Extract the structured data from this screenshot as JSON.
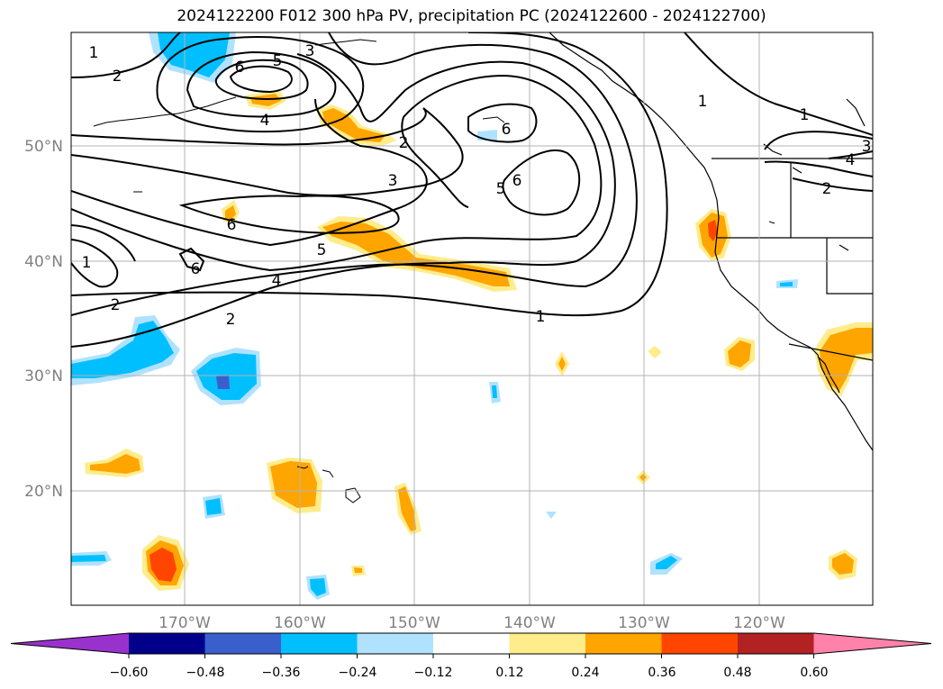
{
  "title": "2024122200 F012 300 hPa PV, precipitation PC (2024122600 - 2024122700)",
  "lat_ticks": [
    "50°N",
    "40°N",
    "30°N",
    "20°N"
  ],
  "lon_ticks": [
    "170°W",
    "160°W",
    "150°W",
    "140°W",
    "130°W",
    "120°W"
  ],
  "contour_labels": [
    "1",
    "2",
    "3",
    "4",
    "5",
    "6"
  ],
  "colorbar": {
    "ticks": [
      "−0.60",
      "−0.48",
      "−0.36",
      "−0.24",
      "−0.12",
      "0.12",
      "0.24",
      "0.36",
      "0.48",
      "0.60"
    ],
    "colors": [
      "#9932cc",
      "#00008b",
      "#3a5fcd",
      "#00bfff",
      "#b0e2ff",
      "#ffffff",
      "#ffec8b",
      "#ffa500",
      "#ff4500",
      "#b22222",
      "#ff82ab"
    ]
  }
}
